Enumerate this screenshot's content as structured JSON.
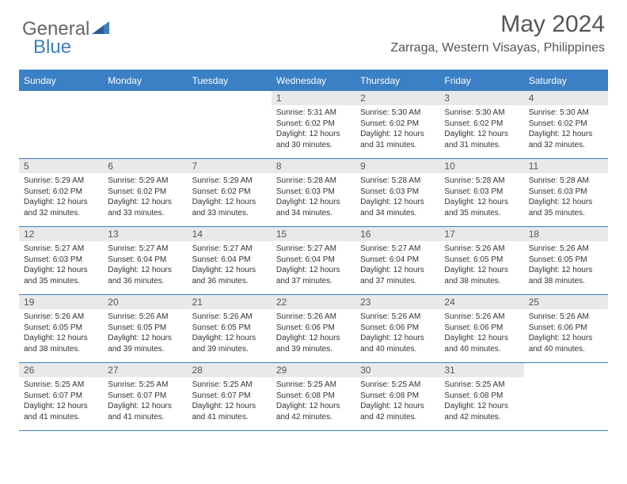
{
  "brand": {
    "part1": "General",
    "part2": "Blue"
  },
  "title": "May 2024",
  "location": "Zarraga, Western Visayas, Philippines",
  "colors": {
    "accent": "#3b7fc4",
    "header_text": "#555",
    "gray_bar": "#e9e9e9"
  },
  "day_headers": [
    "Sunday",
    "Monday",
    "Tuesday",
    "Wednesday",
    "Thursday",
    "Friday",
    "Saturday"
  ],
  "weeks": [
    [
      null,
      null,
      null,
      {
        "n": "1",
        "sr": "Sunrise: 5:31 AM",
        "ss": "Sunset: 6:02 PM",
        "dl1": "Daylight: 12 hours",
        "dl2": "and 30 minutes."
      },
      {
        "n": "2",
        "sr": "Sunrise: 5:30 AM",
        "ss": "Sunset: 6:02 PM",
        "dl1": "Daylight: 12 hours",
        "dl2": "and 31 minutes."
      },
      {
        "n": "3",
        "sr": "Sunrise: 5:30 AM",
        "ss": "Sunset: 6:02 PM",
        "dl1": "Daylight: 12 hours",
        "dl2": "and 31 minutes."
      },
      {
        "n": "4",
        "sr": "Sunrise: 5:30 AM",
        "ss": "Sunset: 6:02 PM",
        "dl1": "Daylight: 12 hours",
        "dl2": "and 32 minutes."
      }
    ],
    [
      {
        "n": "5",
        "sr": "Sunrise: 5:29 AM",
        "ss": "Sunset: 6:02 PM",
        "dl1": "Daylight: 12 hours",
        "dl2": "and 32 minutes."
      },
      {
        "n": "6",
        "sr": "Sunrise: 5:29 AM",
        "ss": "Sunset: 6:02 PM",
        "dl1": "Daylight: 12 hours",
        "dl2": "and 33 minutes."
      },
      {
        "n": "7",
        "sr": "Sunrise: 5:29 AM",
        "ss": "Sunset: 6:02 PM",
        "dl1": "Daylight: 12 hours",
        "dl2": "and 33 minutes."
      },
      {
        "n": "8",
        "sr": "Sunrise: 5:28 AM",
        "ss": "Sunset: 6:03 PM",
        "dl1": "Daylight: 12 hours",
        "dl2": "and 34 minutes."
      },
      {
        "n": "9",
        "sr": "Sunrise: 5:28 AM",
        "ss": "Sunset: 6:03 PM",
        "dl1": "Daylight: 12 hours",
        "dl2": "and 34 minutes."
      },
      {
        "n": "10",
        "sr": "Sunrise: 5:28 AM",
        "ss": "Sunset: 6:03 PM",
        "dl1": "Daylight: 12 hours",
        "dl2": "and 35 minutes."
      },
      {
        "n": "11",
        "sr": "Sunrise: 5:28 AM",
        "ss": "Sunset: 6:03 PM",
        "dl1": "Daylight: 12 hours",
        "dl2": "and 35 minutes."
      }
    ],
    [
      {
        "n": "12",
        "sr": "Sunrise: 5:27 AM",
        "ss": "Sunset: 6:03 PM",
        "dl1": "Daylight: 12 hours",
        "dl2": "and 35 minutes."
      },
      {
        "n": "13",
        "sr": "Sunrise: 5:27 AM",
        "ss": "Sunset: 6:04 PM",
        "dl1": "Daylight: 12 hours",
        "dl2": "and 36 minutes."
      },
      {
        "n": "14",
        "sr": "Sunrise: 5:27 AM",
        "ss": "Sunset: 6:04 PM",
        "dl1": "Daylight: 12 hours",
        "dl2": "and 36 minutes."
      },
      {
        "n": "15",
        "sr": "Sunrise: 5:27 AM",
        "ss": "Sunset: 6:04 PM",
        "dl1": "Daylight: 12 hours",
        "dl2": "and 37 minutes."
      },
      {
        "n": "16",
        "sr": "Sunrise: 5:27 AM",
        "ss": "Sunset: 6:04 PM",
        "dl1": "Daylight: 12 hours",
        "dl2": "and 37 minutes."
      },
      {
        "n": "17",
        "sr": "Sunrise: 5:26 AM",
        "ss": "Sunset: 6:05 PM",
        "dl1": "Daylight: 12 hours",
        "dl2": "and 38 minutes."
      },
      {
        "n": "18",
        "sr": "Sunrise: 5:26 AM",
        "ss": "Sunset: 6:05 PM",
        "dl1": "Daylight: 12 hours",
        "dl2": "and 38 minutes."
      }
    ],
    [
      {
        "n": "19",
        "sr": "Sunrise: 5:26 AM",
        "ss": "Sunset: 6:05 PM",
        "dl1": "Daylight: 12 hours",
        "dl2": "and 38 minutes."
      },
      {
        "n": "20",
        "sr": "Sunrise: 5:26 AM",
        "ss": "Sunset: 6:05 PM",
        "dl1": "Daylight: 12 hours",
        "dl2": "and 39 minutes."
      },
      {
        "n": "21",
        "sr": "Sunrise: 5:26 AM",
        "ss": "Sunset: 6:05 PM",
        "dl1": "Daylight: 12 hours",
        "dl2": "and 39 minutes."
      },
      {
        "n": "22",
        "sr": "Sunrise: 5:26 AM",
        "ss": "Sunset: 6:06 PM",
        "dl1": "Daylight: 12 hours",
        "dl2": "and 39 minutes."
      },
      {
        "n": "23",
        "sr": "Sunrise: 5:26 AM",
        "ss": "Sunset: 6:06 PM",
        "dl1": "Daylight: 12 hours",
        "dl2": "and 40 minutes."
      },
      {
        "n": "24",
        "sr": "Sunrise: 5:26 AM",
        "ss": "Sunset: 6:06 PM",
        "dl1": "Daylight: 12 hours",
        "dl2": "and 40 minutes."
      },
      {
        "n": "25",
        "sr": "Sunrise: 5:26 AM",
        "ss": "Sunset: 6:06 PM",
        "dl1": "Daylight: 12 hours",
        "dl2": "and 40 minutes."
      }
    ],
    [
      {
        "n": "26",
        "sr": "Sunrise: 5:25 AM",
        "ss": "Sunset: 6:07 PM",
        "dl1": "Daylight: 12 hours",
        "dl2": "and 41 minutes."
      },
      {
        "n": "27",
        "sr": "Sunrise: 5:25 AM",
        "ss": "Sunset: 6:07 PM",
        "dl1": "Daylight: 12 hours",
        "dl2": "and 41 minutes."
      },
      {
        "n": "28",
        "sr": "Sunrise: 5:25 AM",
        "ss": "Sunset: 6:07 PM",
        "dl1": "Daylight: 12 hours",
        "dl2": "and 41 minutes."
      },
      {
        "n": "29",
        "sr": "Sunrise: 5:25 AM",
        "ss": "Sunset: 6:08 PM",
        "dl1": "Daylight: 12 hours",
        "dl2": "and 42 minutes."
      },
      {
        "n": "30",
        "sr": "Sunrise: 5:25 AM",
        "ss": "Sunset: 6:08 PM",
        "dl1": "Daylight: 12 hours",
        "dl2": "and 42 minutes."
      },
      {
        "n": "31",
        "sr": "Sunrise: 5:25 AM",
        "ss": "Sunset: 6:08 PM",
        "dl1": "Daylight: 12 hours",
        "dl2": "and 42 minutes."
      },
      null
    ]
  ]
}
